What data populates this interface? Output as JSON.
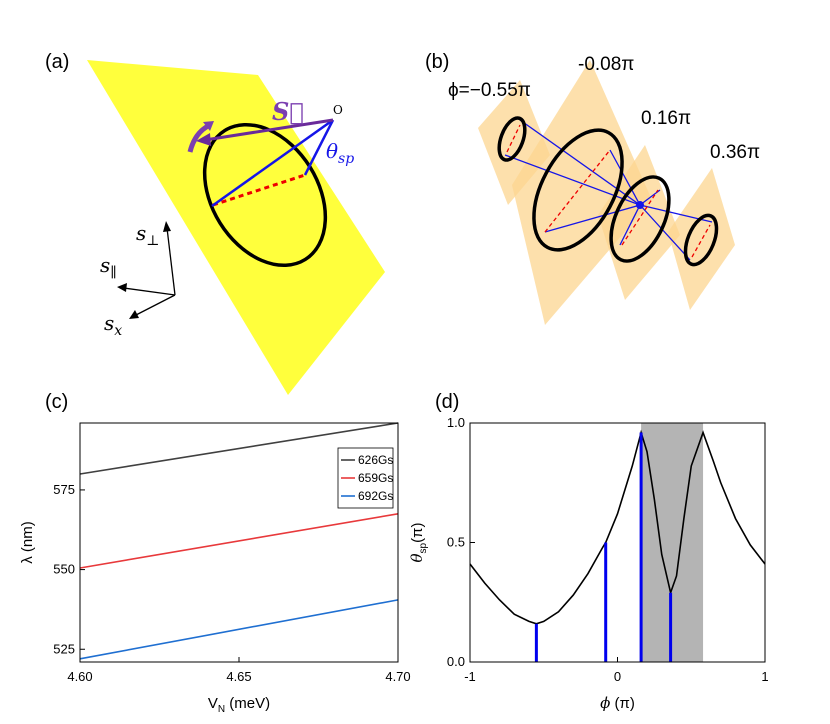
{
  "panels": {
    "a": {
      "label": "(a)",
      "vector_label": "S⃗",
      "angle_label": [
        "θ",
        "sp"
      ],
      "origin_label": "O",
      "axes": [
        [
          "s",
          "⊥"
        ],
        [
          "s",
          "∥"
        ],
        [
          "s",
          "x"
        ]
      ]
    },
    "b": {
      "label": "(b)",
      "phase_labels": [
        "ϕ=−0.55π",
        "-0.08π",
        "0.16π",
        "0.36π"
      ]
    }
  },
  "chart_data": [
    {
      "type": "line",
      "label": "(c)",
      "xlabel": [
        "V",
        "N",
        " (meV)"
      ],
      "ylabel": "λ (nm)",
      "x": [
        4.6,
        4.7
      ],
      "series": [
        {
          "name": "626Gs",
          "color": "#404040",
          "values": [
            580,
            596
          ]
        },
        {
          "name": "659Gs",
          "color": "#e8393b",
          "values": [
            550.5,
            567.5
          ]
        },
        {
          "name": "692Gs",
          "color": "#1f6fd1",
          "values": [
            522,
            540.5
          ]
        }
      ],
      "xlim": [
        4.6,
        4.7
      ],
      "ylim": [
        521,
        596
      ],
      "xticks": [
        {
          "value": 4.6,
          "label": "4.60"
        },
        {
          "value": 4.65,
          "label": "4.65"
        },
        {
          "value": 4.7,
          "label": "4.70"
        }
      ],
      "yticks": [
        525,
        550,
        575
      ],
      "legend": "upper right"
    },
    {
      "type": "line",
      "label": "(d)",
      "xlabel": [
        "ϕ",
        " (π)"
      ],
      "ylabel": [
        "θ",
        "sp",
        "(π)"
      ],
      "curve": {
        "color": "#000000",
        "x": [
          -1,
          -0.9,
          -0.8,
          -0.7,
          -0.6,
          -0.55,
          -0.5,
          -0.4,
          -0.3,
          -0.2,
          -0.1,
          -0.08,
          0,
          0.1,
          0.16,
          0.2,
          0.25,
          0.3,
          0.36,
          0.4,
          0.45,
          0.5,
          0.58,
          0.65,
          0.7,
          0.8,
          0.9,
          1
        ],
        "values": [
          0.41,
          0.33,
          0.26,
          0.2,
          0.17,
          0.16,
          0.17,
          0.21,
          0.28,
          0.37,
          0.48,
          0.5,
          0.62,
          0.82,
          0.96,
          0.88,
          0.68,
          0.45,
          0.29,
          0.36,
          0.6,
          0.82,
          0.96,
          0.84,
          0.75,
          0.6,
          0.49,
          0.41
        ]
      },
      "bars": {
        "color": "#0000ee",
        "x": [
          -0.55,
          -0.08,
          0.16,
          0.36
        ],
        "values": [
          0.16,
          0.5,
          0.96,
          0.29
        ]
      },
      "shaded": {
        "color": "#b4b4b4",
        "x": [
          0.16,
          0.58
        ]
      },
      "xlim": [
        -1,
        1
      ],
      "ylim": [
        0,
        1
      ],
      "xticks": [
        -1,
        0,
        1
      ],
      "yticks": [
        {
          "value": 0,
          "label": "0.0"
        },
        {
          "value": 0.5,
          "label": "0.5"
        },
        {
          "value": 1,
          "label": "1.0"
        }
      ]
    }
  ]
}
